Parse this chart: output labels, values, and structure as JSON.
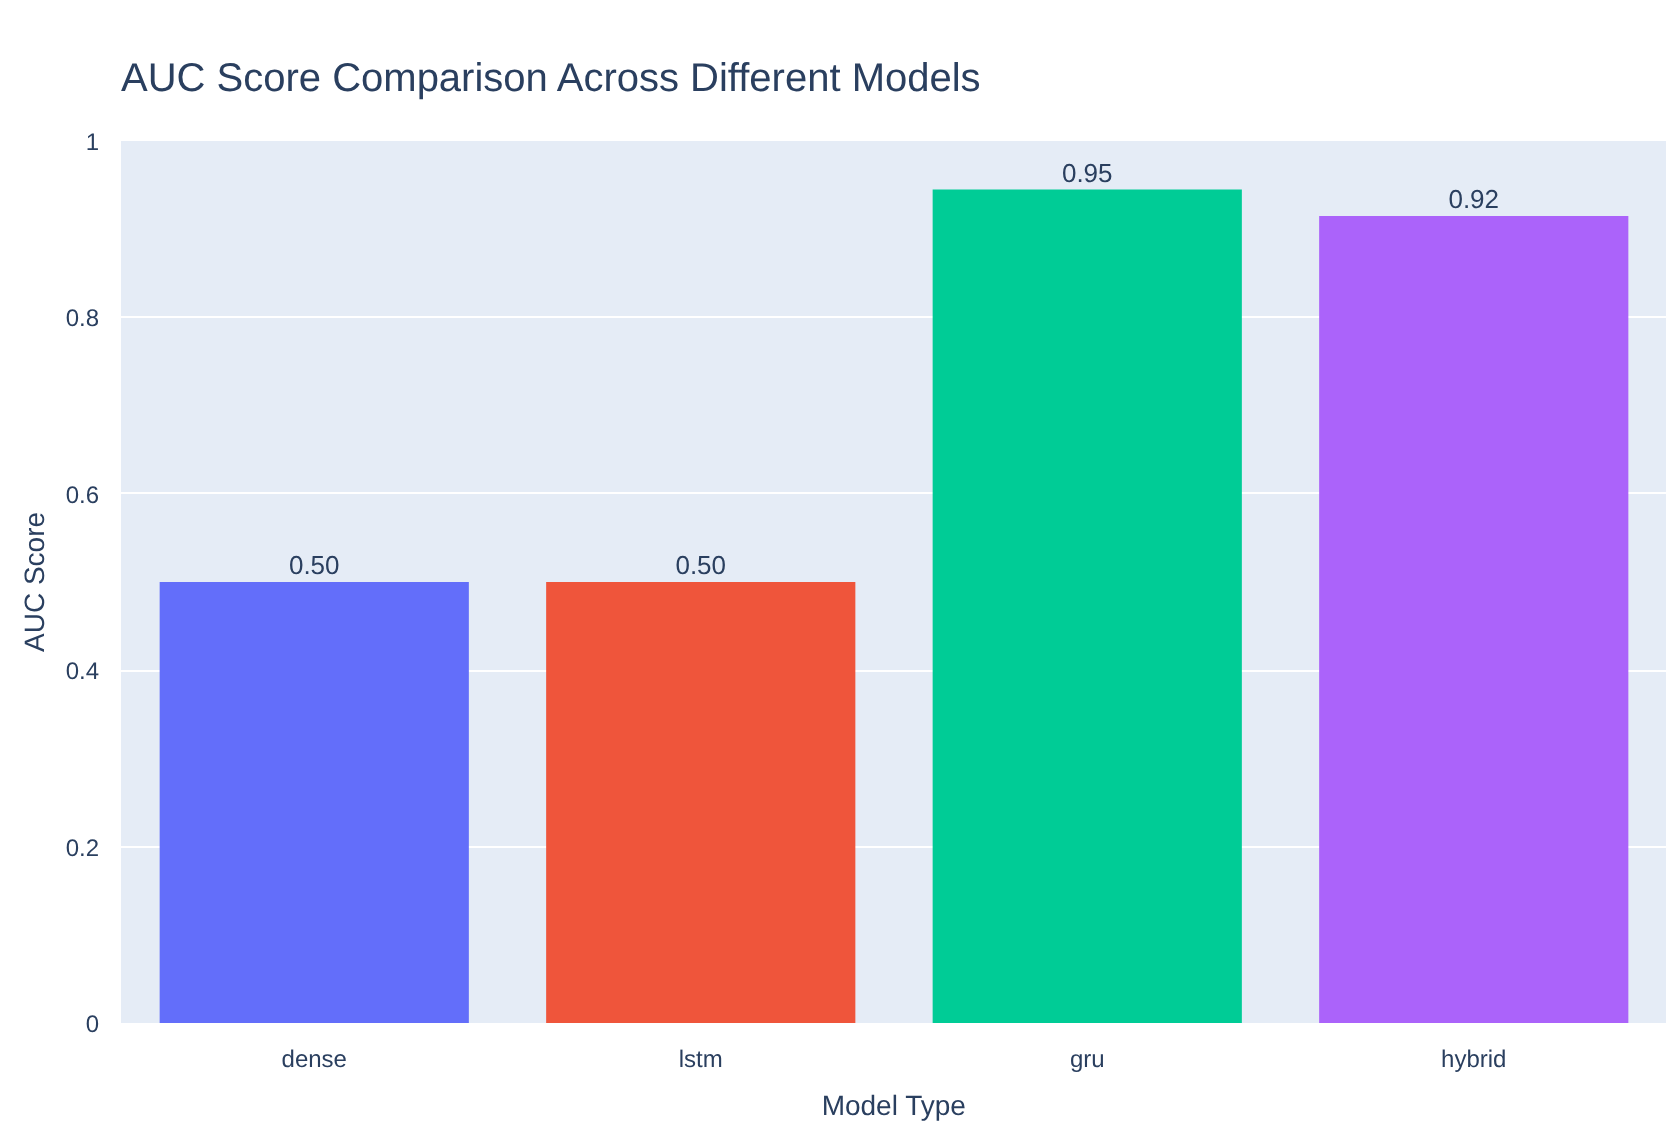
{
  "chart_data": {
    "type": "bar",
    "title": "AUC Score Comparison Across Different Models",
    "xlabel": "Model Type",
    "ylabel": "AUC Score",
    "categories": [
      "dense",
      "lstm",
      "gru",
      "hybrid"
    ],
    "values": [
      0.5,
      0.5,
      0.945,
      0.915
    ],
    "value_labels": [
      "0.50",
      "0.50",
      "0.95",
      "0.92"
    ],
    "colors": [
      "#636efa",
      "#ef553b",
      "#00cc96",
      "#ab63fa"
    ],
    "ylim": [
      0,
      1
    ],
    "yticks": [
      0,
      0.2,
      0.4,
      0.6,
      0.8,
      1
    ],
    "grid": "y"
  }
}
